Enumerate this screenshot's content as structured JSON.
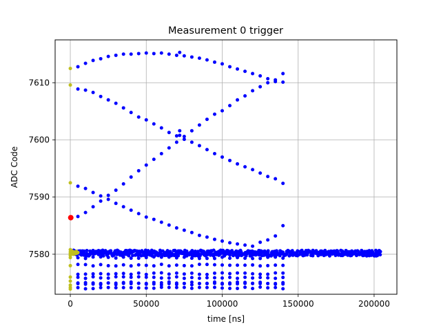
{
  "chart_data": {
    "type": "scatter",
    "title": "Measurement 0 trigger",
    "xlabel": "time [ns]",
    "ylabel": "ADC Code",
    "xlim": [
      -10000,
      215000
    ],
    "ylim": [
      7573,
      7617.5
    ],
    "grid": true,
    "x_ticks": [
      0,
      50000,
      100000,
      150000,
      200000
    ],
    "x_tick_labels": [
      "0",
      "50000",
      "100000",
      "150000",
      "200000"
    ],
    "y_ticks": [
      7580,
      7590,
      7600,
      7610
    ],
    "y_tick_labels": [
      "7580",
      "7590",
      "7600",
      "7610"
    ],
    "colors": {
      "main": "#0000ff",
      "early": "#bfbf1f",
      "trigger": "#ff0000",
      "grid": "#b0b0b0"
    },
    "series": [
      {
        "color": "#0000ff",
        "style": "dense-band",
        "x_range": [
          2000,
          204000
        ],
        "step": 1000,
        "y_center": 7580.2,
        "y_jitter": 0.5
      },
      {
        "color": "#0000ff",
        "points": [
          [
            5000,
            7612.8
          ],
          [
            10000,
            7613.4
          ],
          [
            15000,
            7613.9
          ],
          [
            20000,
            7614.2
          ],
          [
            25000,
            7614.6
          ],
          [
            30000,
            7614.8
          ],
          [
            35000,
            7615.0
          ],
          [
            40000,
            7615.0
          ],
          [
            45000,
            7615.1
          ],
          [
            50000,
            7615.2
          ],
          [
            55000,
            7615.1
          ],
          [
            60000,
            7615.2
          ],
          [
            65000,
            7615.0
          ],
          [
            70000,
            7614.8
          ],
          [
            72000,
            7615.3
          ],
          [
            75000,
            7614.7
          ],
          [
            80000,
            7614.5
          ],
          [
            85000,
            7614.3
          ],
          [
            90000,
            7614.0
          ],
          [
            95000,
            7613.6
          ],
          [
            100000,
            7613.3
          ],
          [
            105000,
            7612.8
          ],
          [
            110000,
            7612.4
          ],
          [
            115000,
            7612.0
          ],
          [
            120000,
            7611.6
          ],
          [
            125000,
            7611.2
          ],
          [
            130000,
            7610.7
          ],
          [
            135000,
            7610.2
          ],
          [
            140000,
            7611.6
          ],
          [
            5000,
            7608.9
          ],
          [
            10000,
            7608.7
          ],
          [
            15000,
            7608.3
          ],
          [
            20000,
            7607.6
          ],
          [
            25000,
            7607.0
          ],
          [
            30000,
            7606.4
          ],
          [
            35000,
            7605.6
          ],
          [
            40000,
            7604.8
          ],
          [
            45000,
            7604.0
          ],
          [
            50000,
            7603.5
          ],
          [
            55000,
            7602.8
          ],
          [
            60000,
            7602.1
          ],
          [
            65000,
            7601.3
          ],
          [
            70000,
            7600.7
          ],
          [
            72000,
            7601.6
          ],
          [
            75000,
            7600.1
          ],
          [
            80000,
            7599.6
          ],
          [
            85000,
            7599.0
          ],
          [
            90000,
            7598.3
          ],
          [
            95000,
            7597.6
          ],
          [
            100000,
            7597.0
          ],
          [
            105000,
            7596.4
          ],
          [
            110000,
            7595.8
          ],
          [
            115000,
            7595.3
          ],
          [
            120000,
            7594.8
          ],
          [
            125000,
            7594.2
          ],
          [
            130000,
            7593.6
          ],
          [
            135000,
            7593.2
          ],
          [
            140000,
            7592.4
          ],
          [
            5000,
            7591.9
          ],
          [
            10000,
            7591.5
          ],
          [
            15000,
            7590.8
          ],
          [
            20000,
            7590.2
          ],
          [
            25000,
            7589.6
          ],
          [
            30000,
            7588.9
          ],
          [
            35000,
            7588.3
          ],
          [
            40000,
            7587.7
          ],
          [
            45000,
            7587.1
          ],
          [
            50000,
            7586.5
          ],
          [
            55000,
            7586.1
          ],
          [
            60000,
            7585.6
          ],
          [
            65000,
            7585.1
          ],
          [
            70000,
            7584.6
          ],
          [
            75000,
            7584.2
          ],
          [
            80000,
            7583.8
          ],
          [
            85000,
            7583.3
          ],
          [
            90000,
            7583.0
          ],
          [
            95000,
            7582.6
          ],
          [
            100000,
            7582.3
          ],
          [
            105000,
            7582.0
          ],
          [
            110000,
            7581.8
          ],
          [
            115000,
            7581.6
          ],
          [
            120000,
            7581.4
          ],
          [
            125000,
            7582.1
          ],
          [
            130000,
            7582.5
          ],
          [
            135000,
            7583.2
          ],
          [
            140000,
            7585.0
          ],
          [
            5000,
            7586.6
          ],
          [
            10000,
            7587.3
          ],
          [
            15000,
            7588.3
          ],
          [
            20000,
            7589.3
          ],
          [
            25000,
            7590.3
          ],
          [
            30000,
            7591.2
          ],
          [
            35000,
            7592.3
          ],
          [
            40000,
            7593.5
          ],
          [
            45000,
            7594.6
          ],
          [
            50000,
            7595.6
          ],
          [
            55000,
            7596.6
          ],
          [
            60000,
            7597.6
          ],
          [
            65000,
            7598.6
          ],
          [
            70000,
            7599.6
          ],
          [
            72000,
            7600.8
          ],
          [
            75000,
            7600.6
          ],
          [
            80000,
            7601.6
          ],
          [
            85000,
            7602.6
          ],
          [
            90000,
            7603.6
          ],
          [
            95000,
            7604.5
          ],
          [
            100000,
            7605.1
          ],
          [
            105000,
            7606.0
          ],
          [
            110000,
            7607.0
          ],
          [
            115000,
            7607.7
          ],
          [
            120000,
            7608.6
          ],
          [
            125000,
            7609.3
          ],
          [
            130000,
            7610.0
          ],
          [
            135000,
            7610.5
          ],
          [
            140000,
            7610.1
          ]
        ]
      },
      {
        "color": "#0000ff",
        "style": "lower-rows",
        "x_range": [
          5000,
          140000
        ],
        "step": 5000,
        "rows": [
          7579.4,
          7578.1,
          7576.6,
          7575.9,
          7575.0,
          7574.8,
          7574.1
        ]
      },
      {
        "color": "#bfbf1f",
        "points": [
          [
            0,
            7612.5
          ],
          [
            0,
            7609.6
          ],
          [
            0,
            7592.5
          ],
          [
            0,
            7580.8
          ],
          [
            0,
            7580.4
          ],
          [
            0,
            7580.1
          ],
          [
            0,
            7579.8
          ],
          [
            0,
            7579.4
          ],
          [
            0,
            7578.0
          ],
          [
            0,
            7576.0
          ],
          [
            0,
            7575.3
          ],
          [
            0,
            7574.6
          ],
          [
            0,
            7574.2
          ],
          [
            0,
            7573.9
          ],
          [
            1000,
            7580.6
          ],
          [
            1500,
            7580.2
          ],
          [
            2000,
            7580.0
          ],
          [
            2500,
            7580.4
          ],
          [
            3000,
            7580.3
          ],
          [
            3500,
            7580.1
          ],
          [
            4000,
            7580.5
          ],
          [
            4500,
            7580.2
          ],
          [
            5000,
            7580.3
          ]
        ]
      },
      {
        "color": "#ff0000",
        "points": [
          [
            300,
            7586.4
          ]
        ]
      }
    ]
  }
}
